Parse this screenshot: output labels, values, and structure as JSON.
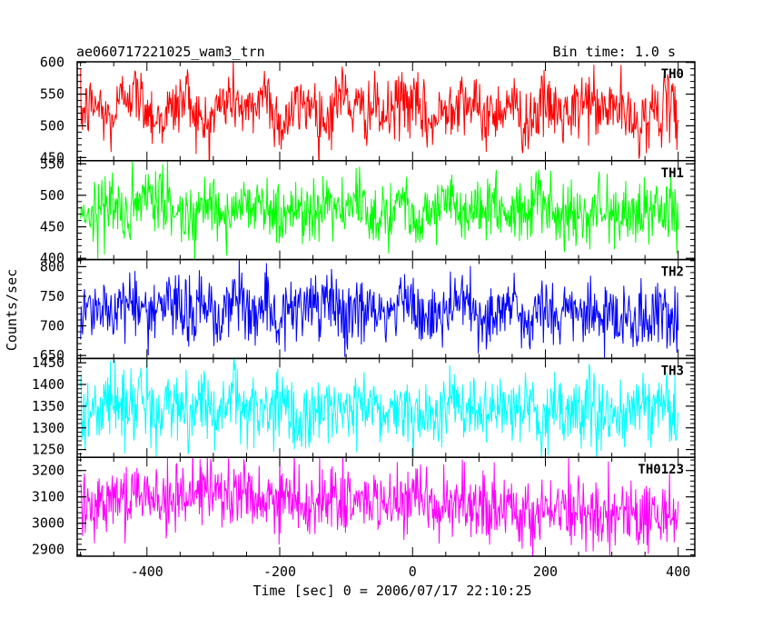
{
  "header": {
    "left_title": "ae060717221025_wam3_trn",
    "right_title": "Bin time: 1.0 s"
  },
  "axes": {
    "xlabel": "Time [sec] 0 = 2006/07/17 22:10:25",
    "ylabel": "Counts/sec"
  },
  "chart_data": {
    "type": "line",
    "title": "ae060717221025_wam3_trn",
    "subtitle": "Bin time: 1.0 s",
    "xlabel": "Time [sec] 0 = 2006/07/17 22:10:25",
    "ylabel": "Counts/sec",
    "xlim": [
      -505,
      425
    ],
    "x_ticks": [
      -400,
      -200,
      0,
      200,
      400
    ],
    "x_range": [
      -500,
      400
    ],
    "bin_time_s": 1.0,
    "grid": false,
    "legend": "none",
    "series": [
      {
        "name": "TH0",
        "color": "#ff0000",
        "ylim": [
          445,
          601
        ],
        "y_ticks": [
          450,
          500,
          550,
          600
        ],
        "mean": 520,
        "amplitude": 35,
        "values": [
          520,
          535,
          505,
          560,
          540,
          510,
          525,
          550,
          495,
          530,
          545,
          515,
          560,
          500,
          525,
          540,
          505,
          555,
          520,
          530,
          510,
          545,
          525,
          500,
          535,
          550,
          515,
          520,
          540,
          505,
          530,
          525,
          510,
          545,
          520,
          535,
          500,
          515,
          530,
          520
        ]
      },
      {
        "name": "TH1",
        "color": "#00ff00",
        "ylim": [
          398,
          555
        ],
        "y_ticks": [
          400,
          450,
          500,
          550
        ],
        "mean": 478,
        "amplitude": 35,
        "values": [
          480,
          470,
          495,
          460,
          485,
          500,
          475,
          465,
          490,
          480,
          470,
          495,
          485,
          460,
          480,
          475,
          500,
          470,
          485,
          465,
          480,
          490,
          470,
          475,
          495,
          460,
          480,
          485,
          470,
          475,
          490,
          465,
          480,
          470,
          485,
          460,
          475,
          480,
          470,
          465
        ]
      },
      {
        "name": "TH2",
        "color": "#0000ff",
        "ylim": [
          645,
          812
        ],
        "y_ticks": [
          650,
          700,
          750,
          800
        ],
        "mean": 725,
        "amplitude": 40,
        "values": [
          725,
          740,
          710,
          755,
          730,
          715,
          745,
          720,
          735,
          705,
          750,
          725,
          740,
          715,
          730,
          720,
          745,
          710,
          735,
          725,
          715,
          740,
          725,
          710,
          730,
          745,
          715,
          720,
          735,
          705,
          725,
          715,
          730,
          720,
          710,
          725,
          715,
          705,
          720,
          710
        ]
      },
      {
        "name": "TH3",
        "color": "#00ffff",
        "ylim": [
          1232,
          1460
        ],
        "y_ticks": [
          1250,
          1300,
          1350,
          1400,
          1450
        ],
        "mean": 1345,
        "amplitude": 55,
        "values": [
          1350,
          1330,
          1370,
          1345,
          1380,
          1320,
          1355,
          1340,
          1365,
          1335,
          1375,
          1345,
          1330,
          1360,
          1300,
          1340,
          1350,
          1335,
          1355,
          1345,
          1325,
          1360,
          1340,
          1330,
          1350,
          1345,
          1320,
          1355,
          1335,
          1340,
          1325,
          1350,
          1330,
          1345,
          1335,
          1320,
          1340,
          1330,
          1355,
          1335
        ]
      },
      {
        "name": "TH0123",
        "color": "#ff00ff",
        "ylim": [
          2875,
          3250
        ],
        "y_ticks": [
          2900,
          3000,
          3100,
          3200
        ],
        "mean": 3080,
        "amplitude": 90,
        "values": [
          3090,
          3070,
          3120,
          3100,
          3140,
          3080,
          3110,
          3095,
          3130,
          3085,
          3115,
          3100,
          3075,
          3120,
          3060,
          3090,
          3100,
          3070,
          3080,
          3090,
          3060,
          3075,
          3080,
          3050,
          3070,
          3065,
          3045,
          3060,
          3050,
          3040,
          3055,
          3045,
          3030,
          3050,
          3040,
          3030,
          3045,
          3020,
          3040,
          3030
        ]
      }
    ]
  }
}
